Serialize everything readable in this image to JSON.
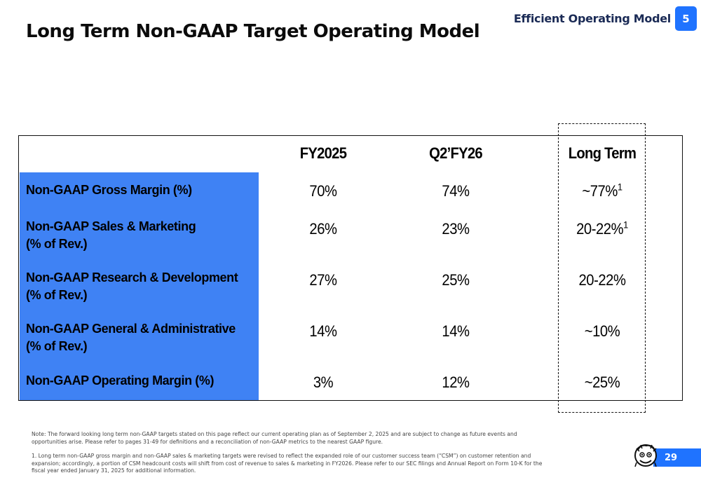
{
  "header": {
    "title": "Long Term Non-GAAP Target Operating Model",
    "section_label": "Efficient Operating Model",
    "section_number": "5"
  },
  "table": {
    "columns": [
      "FY2025",
      "Q2’FY26",
      "Long Term"
    ],
    "rows": [
      {
        "label_line1": "Non-GAAP Gross Margin (%)",
        "label_line2": "",
        "fy2025": "70%",
        "q2fy26": "74%",
        "long_term": "~77%",
        "long_term_sup": "1"
      },
      {
        "label_line1": "Non-GAAP Sales & Marketing",
        "label_line2": "(% of Rev.)",
        "fy2025": "26%",
        "q2fy26": "23%",
        "long_term": "20-22%",
        "long_term_sup": "1"
      },
      {
        "label_line1": "Non-GAAP Research & Development",
        "label_line2": "(% of Rev.)",
        "fy2025": "27%",
        "q2fy26": "25%",
        "long_term": "20-22%",
        "long_term_sup": ""
      },
      {
        "label_line1": "Non-GAAP General & Administrative",
        "label_line2": "(% of Rev.)",
        "fy2025": "14%",
        "q2fy26": "14%",
        "long_term": "~10%",
        "long_term_sup": ""
      },
      {
        "label_line1": "Non-GAAP Operating Margin (%)",
        "label_line2": "",
        "fy2025": "3%",
        "q2fy26": "12%",
        "long_term": "~25%",
        "long_term_sup": ""
      }
    ]
  },
  "footnotes": {
    "note": "Note: The forward looking long term non-GAAP targets stated on this page reflect our current operating plan as of September 2, 2025 and are subject to change as future events and opportunities arise. Please refer to pages 31-49 for definitions and a reconciliation of non-GAAP metrics to the nearest GAAP figure.",
    "footnote_1": "1. Long term non-GAAP gross margin and non-GAAP sales & marketing targets were revised to reflect the expanded role of our customer success team (“CSM”) on customer retention and expansion; accordingly, a portion of CSM headcount costs will shift from cost of revenue to sales & marketing in FY2026. Please refer to our SEC filings and Annual Report on Form 10-K for the fiscal year ended January 31, 2025 for additional information."
  },
  "footer": {
    "page_number": "29",
    "mascot_icon": "mascot-logo-icon"
  },
  "colors": {
    "accent_blue": "#1f73ff",
    "label_column_blue": "#3f82f4",
    "section_label_navy": "#1a2a55"
  }
}
